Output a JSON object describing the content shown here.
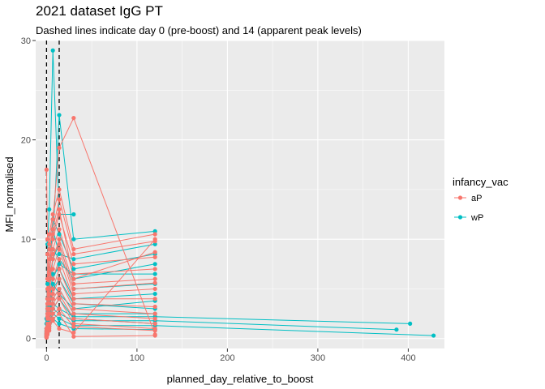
{
  "chart_data": {
    "type": "line",
    "title": "2021 dataset IgG PT",
    "subtitle": "Dashed lines indicate day 0 (pre-boost) and 14 (apparent peak levels)",
    "xlabel": "planned_day_relative_to_boost",
    "ylabel": "MFI_normalised",
    "xlim": [
      -12,
      440
    ],
    "ylim": [
      -1,
      30
    ],
    "x_ticks": [
      0,
      100,
      200,
      300,
      400
    ],
    "y_ticks": [
      0,
      10,
      20,
      30
    ],
    "reference_lines_x": [
      0,
      14
    ],
    "grid": true,
    "legend": {
      "title": "infancy_vac",
      "position": "right",
      "entries": [
        "aP",
        "wP"
      ]
    },
    "colors": {
      "aP": "#F8766D",
      "wP": "#00BFC4",
      "panel": "#EBEBEB",
      "grid": "#FFFFFF"
    },
    "series": [
      {
        "group": "wP",
        "x": [
          0,
          1,
          3,
          7,
          14,
          30
        ],
        "y": [
          2.0,
          9.5,
          13.0,
          29.0,
          12.5,
          12.5
        ]
      },
      {
        "group": "wP",
        "x": [
          0,
          1,
          3,
          7,
          14,
          30,
          120
        ],
        "y": [
          1.0,
          5.5,
          9.0,
          10.0,
          22.5,
          10.0,
          10.8
        ]
      },
      {
        "group": "wP",
        "x": [
          0,
          1,
          3,
          7,
          14,
          30,
          120
        ],
        "y": [
          0.5,
          3.0,
          6.0,
          12.0,
          10.5,
          7.0,
          8.5
        ]
      },
      {
        "group": "wP",
        "x": [
          0,
          1,
          3,
          7,
          14,
          30,
          120
        ],
        "y": [
          1.5,
          4.0,
          7.0,
          9.0,
          8.0,
          6.0,
          7.5
        ]
      },
      {
        "group": "wP",
        "x": [
          0,
          1,
          3,
          7,
          14,
          30,
          120
        ],
        "y": [
          0.3,
          2.0,
          5.0,
          8.0,
          9.5,
          5.0,
          5.5
        ]
      },
      {
        "group": "wP",
        "x": [
          0,
          1,
          3,
          7,
          14,
          30,
          120
        ],
        "y": [
          0.8,
          1.5,
          4.0,
          6.5,
          7.0,
          4.0,
          4.5
        ]
      },
      {
        "group": "wP",
        "x": [
          0,
          1,
          3,
          7,
          14,
          30,
          120
        ],
        "y": [
          0.2,
          1.0,
          3.0,
          5.0,
          6.0,
          3.5,
          3.0
        ]
      },
      {
        "group": "wP",
        "x": [
          0,
          1,
          3,
          7,
          14,
          30,
          120
        ],
        "y": [
          0.5,
          0.8,
          2.0,
          4.0,
          5.0,
          2.5,
          2.5
        ]
      },
      {
        "group": "wP",
        "x": [
          0,
          1,
          3,
          7,
          14,
          30,
          120
        ],
        "y": [
          0.1,
          0.5,
          1.5,
          3.0,
          4.0,
          2.0,
          1.5
        ]
      },
      {
        "group": "wP",
        "x": [
          0,
          1,
          3,
          7,
          14,
          30,
          120,
          402
        ],
        "y": [
          0.4,
          1.2,
          2.5,
          3.5,
          3.0,
          2.2,
          2.2,
          1.5
        ]
      },
      {
        "group": "wP",
        "x": [
          0,
          1,
          3,
          7,
          14,
          30,
          120,
          387
        ],
        "y": [
          0.3,
          1.0,
          2.0,
          3.0,
          2.5,
          1.8,
          1.8,
          0.9
        ]
      },
      {
        "group": "wP",
        "x": [
          0,
          1,
          3,
          7,
          14,
          30,
          120,
          428
        ],
        "y": [
          0.2,
          0.8,
          1.5,
          2.5,
          2.0,
          1.3,
          1.3,
          0.3
        ]
      },
      {
        "group": "wP",
        "x": [
          0,
          1,
          3,
          7,
          14,
          30,
          120
        ],
        "y": [
          1.0,
          2.5,
          6.0,
          11.0,
          8.5,
          8.0,
          9.5
        ]
      },
      {
        "group": "wP",
        "x": [
          0,
          1,
          3,
          7,
          14,
          30,
          120
        ],
        "y": [
          0.6,
          1.8,
          3.5,
          5.5,
          4.5,
          3.0,
          3.8
        ]
      },
      {
        "group": "wP",
        "x": [
          0,
          1,
          3,
          7,
          14,
          30,
          120
        ],
        "y": [
          0.4,
          0.9,
          1.2,
          2.0,
          1.5,
          1.0,
          0.9
        ]
      },
      {
        "group": "wP",
        "x": [
          0,
          1,
          3,
          7,
          14,
          30,
          120
        ],
        "y": [
          0.7,
          1.4,
          3.2,
          6.0,
          7.5,
          6.5,
          6.5
        ]
      },
      {
        "group": "aP",
        "x": [
          0,
          1,
          3,
          7,
          14,
          30,
          120
        ],
        "y": [
          17.0,
          10.0,
          9.5,
          12.0,
          19.2,
          22.2,
          0.4
        ]
      },
      {
        "group": "aP",
        "x": [
          0,
          1,
          3,
          7,
          14,
          30,
          120
        ],
        "y": [
          0.5,
          8.5,
          10.5,
          12.5,
          15.0,
          9.0,
          10.5
        ]
      },
      {
        "group": "aP",
        "x": [
          0,
          1,
          3,
          7,
          14,
          30,
          120
        ],
        "y": [
          1.0,
          6.0,
          9.0,
          11.0,
          14.0,
          8.5,
          9.8
        ]
      },
      {
        "group": "aP",
        "x": [
          0,
          1,
          3,
          7,
          14,
          30,
          120
        ],
        "y": [
          0.3,
          5.0,
          8.0,
          10.0,
          12.5,
          7.5,
          8.2
        ]
      },
      {
        "group": "aP",
        "x": [
          0,
          1,
          3,
          7,
          14,
          30,
          120
        ],
        "y": [
          0.8,
          4.0,
          7.0,
          9.0,
          11.0,
          6.5,
          7.0
        ]
      },
      {
        "group": "aP",
        "x": [
          0,
          1,
          3,
          7,
          14,
          30,
          120
        ],
        "y": [
          0.2,
          3.0,
          6.0,
          8.0,
          10.0,
          5.5,
          6.0
        ]
      },
      {
        "group": "aP",
        "x": [
          0,
          1,
          3,
          7,
          14,
          30,
          120
        ],
        "y": [
          0.4,
          2.5,
          5.0,
          7.0,
          9.0,
          4.5,
          5.0
        ]
      },
      {
        "group": "aP",
        "x": [
          0,
          1,
          3,
          7,
          14,
          30,
          120
        ],
        "y": [
          0.1,
          2.0,
          4.0,
          6.0,
          8.0,
          4.0,
          4.0
        ]
      },
      {
        "group": "aP",
        "x": [
          0,
          1,
          3,
          7,
          14,
          30,
          120
        ],
        "y": [
          0.6,
          1.5,
          3.5,
          5.0,
          7.0,
          3.5,
          3.2
        ]
      },
      {
        "group": "aP",
        "x": [
          0,
          1,
          3,
          7,
          14,
          30,
          120
        ],
        "y": [
          0.3,
          1.0,
          3.0,
          4.5,
          6.0,
          3.0,
          2.5
        ]
      },
      {
        "group": "aP",
        "x": [
          0,
          1,
          3,
          7,
          14,
          30,
          120
        ],
        "y": [
          0.5,
          1.2,
          2.5,
          4.0,
          5.0,
          2.5,
          2.0
        ]
      },
      {
        "group": "aP",
        "x": [
          0,
          1,
          3,
          7,
          14,
          30,
          120
        ],
        "y": [
          0.2,
          0.8,
          2.0,
          3.5,
          4.5,
          2.0,
          1.5
        ]
      },
      {
        "group": "aP",
        "x": [
          0,
          1,
          3,
          7,
          14,
          30,
          120
        ],
        "y": [
          0.4,
          0.9,
          1.5,
          3.0,
          4.0,
          1.5,
          1.0
        ]
      },
      {
        "group": "aP",
        "x": [
          0,
          1,
          3,
          7,
          14,
          30,
          120
        ],
        "y": [
          0.1,
          0.5,
          1.0,
          2.5,
          3.0,
          1.2,
          0.8
        ]
      },
      {
        "group": "aP",
        "x": [
          0,
          1,
          3,
          7,
          14,
          30,
          120
        ],
        "y": [
          0.3,
          0.6,
          0.8,
          2.0,
          2.5,
          0.2,
          0.3
        ]
      },
      {
        "group": "aP",
        "x": [
          0,
          1,
          3,
          7,
          14,
          30,
          120
        ],
        "y": [
          1.0,
          3.5,
          6.5,
          10.5,
          13.0,
          6.0,
          8.7
        ]
      },
      {
        "group": "aP",
        "x": [
          0,
          1,
          3,
          7,
          14,
          30,
          120
        ],
        "y": [
          0.7,
          2.2,
          4.5,
          8.5,
          9.5,
          5.0,
          5.6
        ]
      },
      {
        "group": "aP",
        "x": [
          0,
          1,
          3,
          7,
          14,
          30,
          120
        ],
        "y": [
          0.2,
          0.4,
          1.2,
          1.8,
          1.0,
          0.6,
          10.0
        ]
      }
    ]
  }
}
